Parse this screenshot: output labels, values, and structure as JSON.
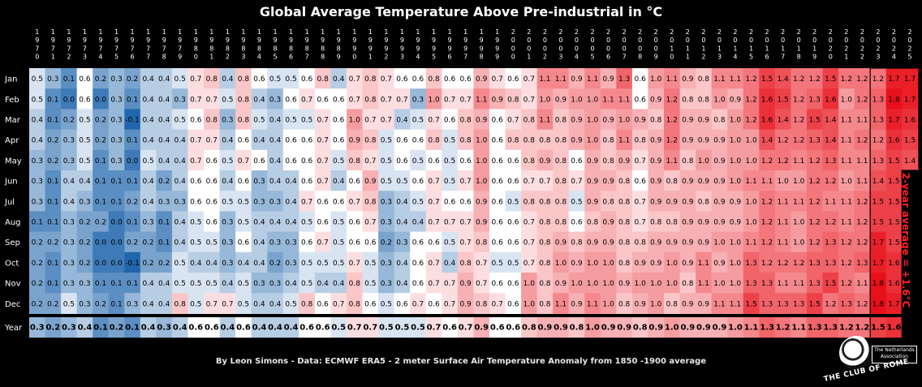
{
  "title": "Global Average Temperature Above Pre-industrial in °C",
  "footer": "By Leon Simons - Data: ECMWF ERA5 - 2 meter Surface Air Temperature Anomaly from 1850 -1900 average",
  "side_note": "2-year average = +1.6°C",
  "logo": {
    "name": "THE CLUB OF ROME",
    "association": "The Netherlands Association"
  },
  "chart_data": {
    "type": "heatmap",
    "title": "Global Average Temperature Above Pre-industrial in °C",
    "unit": "°C",
    "years": [
      1970,
      1971,
      1972,
      1973,
      1974,
      1975,
      1976,
      1977,
      1978,
      1979,
      1980,
      1981,
      1982,
      1983,
      1984,
      1985,
      1986,
      1987,
      1988,
      1989,
      1990,
      1991,
      1992,
      1993,
      1994,
      1995,
      1996,
      1997,
      1998,
      1999,
      2000,
      2001,
      2002,
      2003,
      2004,
      2005,
      2006,
      2007,
      2008,
      2009,
      2010,
      2011,
      2012,
      2013,
      2014,
      2015,
      2016,
      2017,
      2018,
      2019,
      2020,
      2021,
      2022,
      2023,
      2024,
      2025
    ],
    "months": [
      "Jan",
      "Feb",
      "Mar",
      "Apr",
      "May",
      "Jun",
      "Jul",
      "Aug",
      "Sep",
      "Oct",
      "Nov",
      "Dec"
    ],
    "year_label": "Year",
    "values": [
      [
        0.5,
        0.3,
        0.1,
        0.6,
        0.2,
        0.3,
        0.2,
        0.4,
        0.4,
        0.5,
        0.7,
        0.8,
        0.4,
        0.8,
        0.6,
        0.5,
        0.5,
        0.6,
        0.8,
        0.4,
        0.7,
        0.8,
        0.7,
        0.6,
        0.6,
        0.8,
        0.6,
        0.6,
        0.9,
        0.7,
        0.6,
        0.7,
        1.1,
        1.1,
        0.9,
        1.1,
        0.9,
        1.3,
        0.6,
        1.0,
        1.1,
        0.9,
        0.8,
        1.1,
        1.1,
        1.2,
        1.5,
        1.4,
        1.2,
        1.2,
        1.5,
        1.2,
        1.2,
        1.2,
        1.7,
        1.7
      ],
      [
        0.5,
        0.1,
        0.0,
        0.6,
        0.0,
        0.3,
        0.1,
        0.4,
        0.4,
        0.3,
        0.7,
        0.7,
        0.5,
        0.8,
        0.4,
        0.3,
        0.6,
        0.7,
        0.6,
        0.6,
        0.7,
        0.8,
        0.7,
        0.7,
        0.3,
        1.0,
        0.7,
        0.7,
        1.1,
        0.9,
        0.8,
        0.7,
        1.0,
        0.9,
        1.0,
        1.0,
        1.1,
        1.1,
        0.6,
        0.9,
        1.2,
        0.8,
        0.8,
        1.0,
        0.9,
        1.2,
        1.6,
        1.5,
        1.2,
        1.3,
        1.6,
        1.0,
        1.2,
        1.3,
        1.8,
        1.7
      ],
      [
        0.4,
        0.1,
        0.2,
        0.5,
        0.2,
        0.3,
        -0.1,
        0.4,
        0.4,
        0.5,
        0.6,
        0.8,
        0.3,
        0.8,
        0.5,
        0.4,
        0.5,
        0.5,
        0.7,
        0.6,
        1.0,
        0.7,
        0.7,
        0.4,
        0.5,
        0.7,
        0.6,
        0.8,
        0.9,
        0.6,
        0.7,
        0.8,
        1.1,
        0.8,
        0.9,
        1.0,
        0.9,
        1.0,
        0.9,
        0.8,
        1.2,
        0.9,
        0.9,
        0.8,
        1.0,
        1.2,
        1.6,
        1.4,
        1.2,
        1.5,
        1.4,
        1.1,
        1.1,
        1.3,
        1.7,
        1.6
      ],
      [
        0.4,
        0.2,
        0.3,
        0.5,
        0.2,
        0.3,
        0.1,
        0.4,
        0.4,
        0.4,
        0.7,
        0.7,
        0.4,
        0.6,
        0.4,
        0.4,
        0.6,
        0.6,
        0.7,
        0.6,
        0.9,
        0.8,
        0.5,
        0.6,
        0.6,
        0.8,
        0.5,
        0.8,
        1.0,
        0.6,
        0.8,
        0.8,
        0.8,
        0.8,
        0.9,
        1.0,
        0.8,
        1.1,
        0.8,
        0.9,
        1.2,
        0.9,
        0.9,
        0.9,
        1.0,
        1.0,
        1.4,
        1.2,
        1.2,
        1.3,
        1.4,
        1.1,
        1.2,
        1.2,
        1.6,
        1.5
      ],
      [
        0.3,
        0.2,
        0.3,
        0.5,
        0.1,
        0.3,
        0.0,
        0.5,
        0.4,
        0.4,
        0.7,
        0.6,
        0.5,
        0.7,
        0.6,
        0.4,
        0.6,
        0.6,
        0.7,
        0.5,
        0.8,
        0.7,
        0.5,
        0.6,
        0.5,
        0.6,
        0.5,
        0.6,
        1.0,
        0.6,
        0.6,
        0.8,
        0.9,
        0.8,
        0.6,
        0.9,
        0.8,
        0.9,
        0.7,
        0.9,
        1.1,
        0.8,
        1.0,
        0.9,
        1.0,
        1.0,
        1.2,
        1.2,
        1.1,
        1.2,
        1.3,
        1.1,
        1.1,
        1.3,
        1.5,
        1.4
      ],
      [
        0.3,
        0.1,
        0.4,
        0.4,
        0.1,
        0.1,
        0.1,
        0.4,
        0.2,
        0.4,
        0.6,
        0.6,
        0.4,
        0.6,
        0.3,
        0.4,
        0.4,
        0.6,
        0.7,
        0.4,
        0.6,
        0.9,
        0.5,
        0.5,
        0.6,
        0.7,
        0.5,
        0.7,
        1.0,
        0.6,
        0.6,
        0.7,
        0.7,
        0.8,
        0.7,
        0.9,
        0.9,
        0.8,
        0.6,
        0.9,
        0.8,
        0.9,
        0.9,
        0.9,
        1.0,
        1.1,
        1.1,
        1.0,
        1.0,
        1.2,
        1.2,
        1.0,
        1.1,
        1.4,
        1.5,
        null
      ],
      [
        0.3,
        0.1,
        0.4,
        0.3,
        0.1,
        0.1,
        0.2,
        0.4,
        0.3,
        0.3,
        0.6,
        0.6,
        0.5,
        0.5,
        0.3,
        0.3,
        0.4,
        0.7,
        0.6,
        0.6,
        0.7,
        0.8,
        0.3,
        0.4,
        0.5,
        0.7,
        0.6,
        0.6,
        0.9,
        0.6,
        0.5,
        0.8,
        0.8,
        0.8,
        0.5,
        0.9,
        0.8,
        0.8,
        0.7,
        0.9,
        0.9,
        0.9,
        0.8,
        0.9,
        0.9,
        1.0,
        1.2,
        1.1,
        1.1,
        1.2,
        1.1,
        1.1,
        1.2,
        1.5,
        1.5,
        null
      ],
      [
        0.1,
        0.1,
        0.3,
        0.2,
        0.2,
        0.0,
        0.1,
        0.3,
        0.1,
        0.4,
        0.5,
        0.6,
        0.3,
        0.5,
        0.4,
        0.4,
        0.4,
        0.5,
        0.6,
        0.5,
        0.6,
        0.7,
        0.3,
        0.4,
        0.4,
        0.7,
        0.7,
        0.7,
        0.9,
        0.6,
        0.6,
        0.7,
        0.8,
        0.8,
        0.6,
        0.8,
        0.9,
        0.8,
        0.7,
        0.8,
        0.8,
        0.9,
        0.9,
        0.9,
        0.9,
        1.0,
        1.2,
        1.1,
        1.0,
        1.2,
        1.2,
        1.1,
        1.2,
        1.5,
        1.5,
        null
      ],
      [
        0.2,
        0.2,
        0.3,
        0.2,
        0.0,
        0.0,
        0.2,
        0.2,
        0.1,
        0.4,
        0.5,
        0.5,
        0.3,
        0.6,
        0.4,
        0.3,
        0.3,
        0.6,
        0.7,
        0.5,
        0.6,
        0.6,
        0.2,
        0.3,
        0.6,
        0.6,
        0.5,
        0.7,
        0.8,
        0.6,
        0.6,
        0.7,
        0.8,
        0.9,
        0.8,
        0.9,
        0.9,
        0.8,
        0.8,
        0.9,
        0.9,
        0.9,
        0.9,
        1.0,
        1.0,
        1.1,
        1.2,
        1.1,
        1.0,
        1.2,
        1.3,
        1.2,
        1.2,
        1.7,
        1.5,
        null
      ],
      [
        0.2,
        0.1,
        0.3,
        0.2,
        0.0,
        0.0,
        -0.1,
        0.2,
        0.2,
        0.5,
        0.4,
        0.4,
        0.3,
        0.4,
        0.4,
        0.2,
        0.3,
        0.5,
        0.5,
        0.5,
        0.7,
        0.5,
        0.3,
        0.4,
        0.6,
        0.7,
        0.4,
        0.8,
        0.7,
        0.5,
        0.5,
        0.7,
        0.8,
        1.0,
        0.9,
        1.0,
        1.0,
        0.8,
        0.9,
        0.9,
        1.0,
        0.9,
        1.1,
        0.9,
        1.0,
        1.3,
        1.2,
        1.2,
        1.2,
        1.3,
        1.3,
        1.2,
        1.3,
        1.7,
        1.6,
        null
      ],
      [
        0.2,
        0.1,
        0.3,
        0.3,
        0.1,
        0.1,
        0.1,
        0.4,
        0.4,
        0.5,
        0.5,
        0.5,
        0.4,
        0.5,
        0.3,
        0.3,
        0.4,
        0.5,
        0.4,
        0.4,
        0.8,
        0.5,
        0.3,
        0.4,
        0.6,
        0.7,
        0.7,
        0.9,
        0.7,
        0.6,
        0.6,
        1.0,
        0.8,
        0.9,
        1.0,
        1.0,
        1.0,
        0.9,
        1.0,
        1.0,
        1.0,
        0.8,
        1.1,
        1.0,
        1.0,
        1.3,
        1.3,
        1.1,
        1.1,
        1.3,
        1.5,
        1.2,
        1.1,
        1.8,
        1.6,
        null
      ],
      [
        0.2,
        0.2,
        0.5,
        0.3,
        0.2,
        0.1,
        0.3,
        0.4,
        0.4,
        0.8,
        0.5,
        0.7,
        0.7,
        0.5,
        0.4,
        0.4,
        0.5,
        0.8,
        0.6,
        0.7,
        0.8,
        0.6,
        0.5,
        0.6,
        0.7,
        0.6,
        0.7,
        0.9,
        0.8,
        0.7,
        0.6,
        1.0,
        0.8,
        1.1,
        0.9,
        1.1,
        1.0,
        0.8,
        0.9,
        1.0,
        0.8,
        0.9,
        0.9,
        1.1,
        1.1,
        1.5,
        1.3,
        1.3,
        1.3,
        1.5,
        1.2,
        1.3,
        1.2,
        1.8,
        1.7,
        null
      ]
    ],
    "annual": [
      0.3,
      0.2,
      0.3,
      0.4,
      0.1,
      0.2,
      0.1,
      0.4,
      0.3,
      0.4,
      0.6,
      0.6,
      0.4,
      0.6,
      0.4,
      0.4,
      0.4,
      0.6,
      0.6,
      0.5,
      0.7,
      0.7,
      0.5,
      0.5,
      0.5,
      0.7,
      0.6,
      0.7,
      0.9,
      0.6,
      0.6,
      0.8,
      0.9,
      0.9,
      0.8,
      1.0,
      0.9,
      0.9,
      0.8,
      0.9,
      1.0,
      0.9,
      0.9,
      0.9,
      1.0,
      1.1,
      1.3,
      1.2,
      1.1,
      1.3,
      1.3,
      1.2,
      1.2,
      1.5,
      1.6,
      null
    ],
    "color_scale": {
      "min": -0.1,
      "mid": 0.6,
      "max": 1.8,
      "cold": "#2166ac",
      "neutral": "#ffffff",
      "hot": "#e8101a"
    }
  }
}
